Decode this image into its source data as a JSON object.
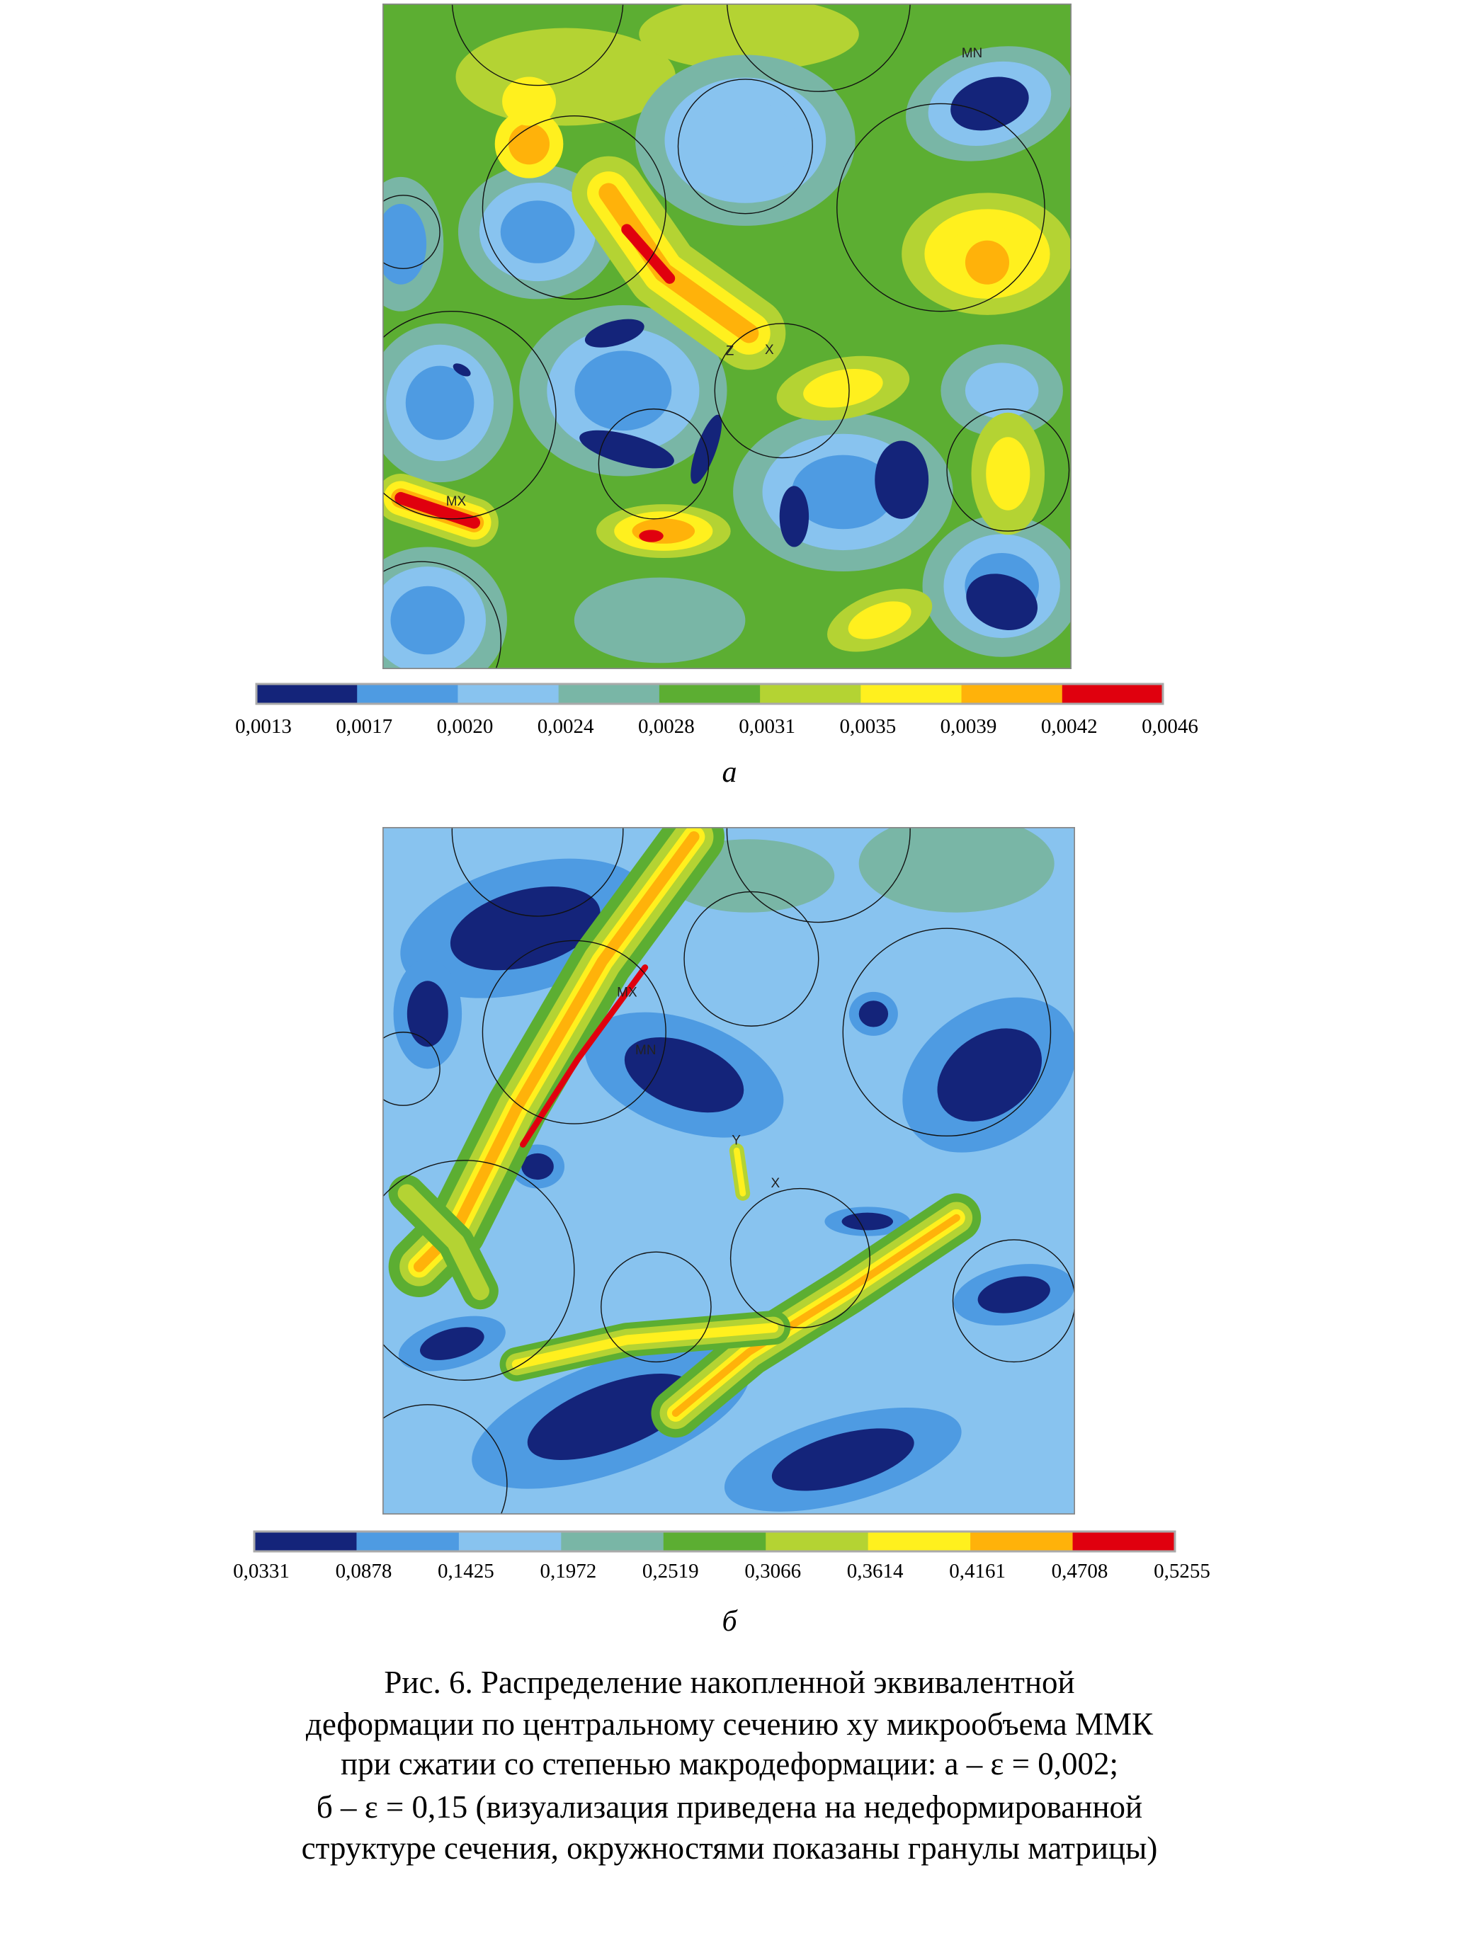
{
  "figures": [
    {
      "annotations": [
        "MN",
        "MX",
        "Z",
        "X"
      ],
      "colorbar": {
        "colors": [
          "#14247a",
          "#4e9be2",
          "#88c3ef",
          "#79b6a6",
          "#5cae32",
          "#b4d333",
          "#fff01e",
          "#ffb20a",
          "#e0000e"
        ],
        "labels": [
          "0,0013",
          "0,0017",
          "0,0020",
          "0,0024",
          "0,0028",
          "0,0031",
          "0,0035",
          "0,0039",
          "0,0042",
          "0,0046"
        ]
      },
      "panel_label": "а"
    },
    {
      "annotations": [
        "MX",
        "MN",
        "Y",
        "X"
      ],
      "colorbar": {
        "colors": [
          "#14247a",
          "#4e9be2",
          "#88c3ef",
          "#79b6a6",
          "#5cae32",
          "#b4d333",
          "#fff01e",
          "#ffb20a",
          "#e0000e"
        ],
        "labels": [
          "0,0331",
          "0,0878",
          "0,1425",
          "0,1972",
          "0,2519",
          "0,3066",
          "0,3614",
          "0,4161",
          "0,4708",
          "0,5255"
        ]
      },
      "panel_label": "б"
    }
  ],
  "caption": [
    "Рис. 6. Распределение накопленной эквивалентной",
    "деформации по центральному сечению xy микрообъема ММК",
    "при сжатии со степенью макродеформации: а – ε = 0,002;",
    "б – ε = 0,15 (визуализация приведена на недеформированной",
    "структуре сечения, окружностями показаны гранулы матрицы)"
  ]
}
